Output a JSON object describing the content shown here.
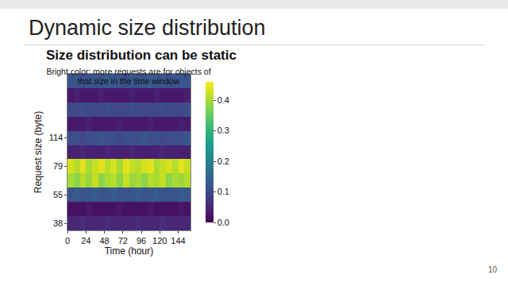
{
  "slide": {
    "heading": "Dynamic size distribution",
    "page": 10
  },
  "chart_data": {
    "type": "heatmap",
    "title": "Size distribution can be static",
    "subtitle": "Bright color: more requests are for objects of that size in the time window",
    "x_label": "Time (hour)",
    "y_label": "Request size (byte)",
    "categories": [
      38,
      null,
      55,
      null,
      79,
      null,
      114,
      null,
      null,
      null,
      null
    ],
    "x": [
      4,
      12,
      20,
      28,
      36,
      44,
      52,
      60,
      68,
      76,
      84,
      92,
      100,
      108,
      116,
      124,
      132,
      140,
      148,
      156
    ],
    "xlim": [
      0,
      160
    ],
    "xticks": [
      0,
      24,
      48,
      72,
      96,
      120,
      144
    ],
    "color": "Viridis",
    "cells": [
      [
        0.05,
        0.05,
        0.06,
        0.05,
        0.05,
        0.05,
        0.06,
        0.05,
        0.05,
        0.05,
        0.05,
        0.06,
        0.05,
        0.05,
        0.05,
        0.06,
        0.05,
        0.05,
        0.05,
        0.05
      ],
      [
        0.02,
        0.02,
        0.02,
        0.03,
        0.02,
        0.02,
        0.02,
        0.02,
        0.03,
        0.02,
        0.02,
        0.02,
        0.02,
        0.03,
        0.02,
        0.02,
        0.02,
        0.02,
        0.03,
        0.02
      ],
      [
        0.12,
        0.13,
        0.12,
        0.12,
        0.13,
        0.12,
        0.12,
        0.13,
        0.12,
        0.12,
        0.12,
        0.13,
        0.12,
        0.12,
        0.13,
        0.12,
        0.12,
        0.12,
        0.13,
        0.12
      ],
      [
        0.4,
        0.38,
        0.41,
        0.39,
        0.42,
        0.38,
        0.4,
        0.41,
        0.38,
        0.42,
        0.39,
        0.4,
        0.38,
        0.41,
        0.4,
        0.42,
        0.38,
        0.4,
        0.39,
        0.41
      ],
      [
        0.43,
        0.41,
        0.44,
        0.4,
        0.42,
        0.44,
        0.41,
        0.43,
        0.4,
        0.44,
        0.42,
        0.41,
        0.43,
        0.44,
        0.4,
        0.42,
        0.43,
        0.41,
        0.44,
        0.42
      ],
      [
        0.04,
        0.04,
        0.05,
        0.04,
        0.04,
        0.04,
        0.05,
        0.04,
        0.04,
        0.04,
        0.05,
        0.04,
        0.04,
        0.04,
        0.04,
        0.05,
        0.04,
        0.04,
        0.04,
        0.04
      ],
      [
        0.11,
        0.11,
        0.1,
        0.11,
        0.11,
        0.12,
        0.11,
        0.11,
        0.1,
        0.11,
        0.11,
        0.11,
        0.12,
        0.11,
        0.11,
        0.1,
        0.11,
        0.11,
        0.11,
        0.12
      ],
      [
        0.03,
        0.03,
        0.03,
        0.04,
        0.03,
        0.03,
        0.03,
        0.03,
        0.04,
        0.03,
        0.03,
        0.03,
        0.03,
        0.04,
        0.03,
        0.03,
        0.03,
        0.03,
        0.04,
        0.03
      ],
      [
        0.1,
        0.1,
        0.11,
        0.1,
        0.1,
        0.1,
        0.11,
        0.1,
        0.1,
        0.1,
        0.11,
        0.1,
        0.1,
        0.1,
        0.1,
        0.11,
        0.1,
        0.1,
        0.1,
        0.11
      ],
      [
        0.03,
        0.04,
        0.03,
        0.03,
        0.03,
        0.04,
        0.03,
        0.03,
        0.03,
        0.03,
        0.04,
        0.03,
        0.03,
        0.03,
        0.04,
        0.03,
        0.03,
        0.03,
        0.03,
        0.04
      ],
      [
        0.12,
        0.12,
        0.11,
        0.12,
        0.12,
        0.12,
        0.13,
        0.12,
        0.12,
        0.11,
        0.12,
        0.12,
        0.12,
        0.13,
        0.12,
        0.12,
        0.11,
        0.12,
        0.12,
        0.12
      ]
    ],
    "colorbar_range": [
      0,
      0.46
    ],
    "colorbar_ticks": [
      {
        "value": 0,
        "label": "0.0"
      },
      0.1,
      0.2,
      0.3,
      0.4
    ]
  }
}
